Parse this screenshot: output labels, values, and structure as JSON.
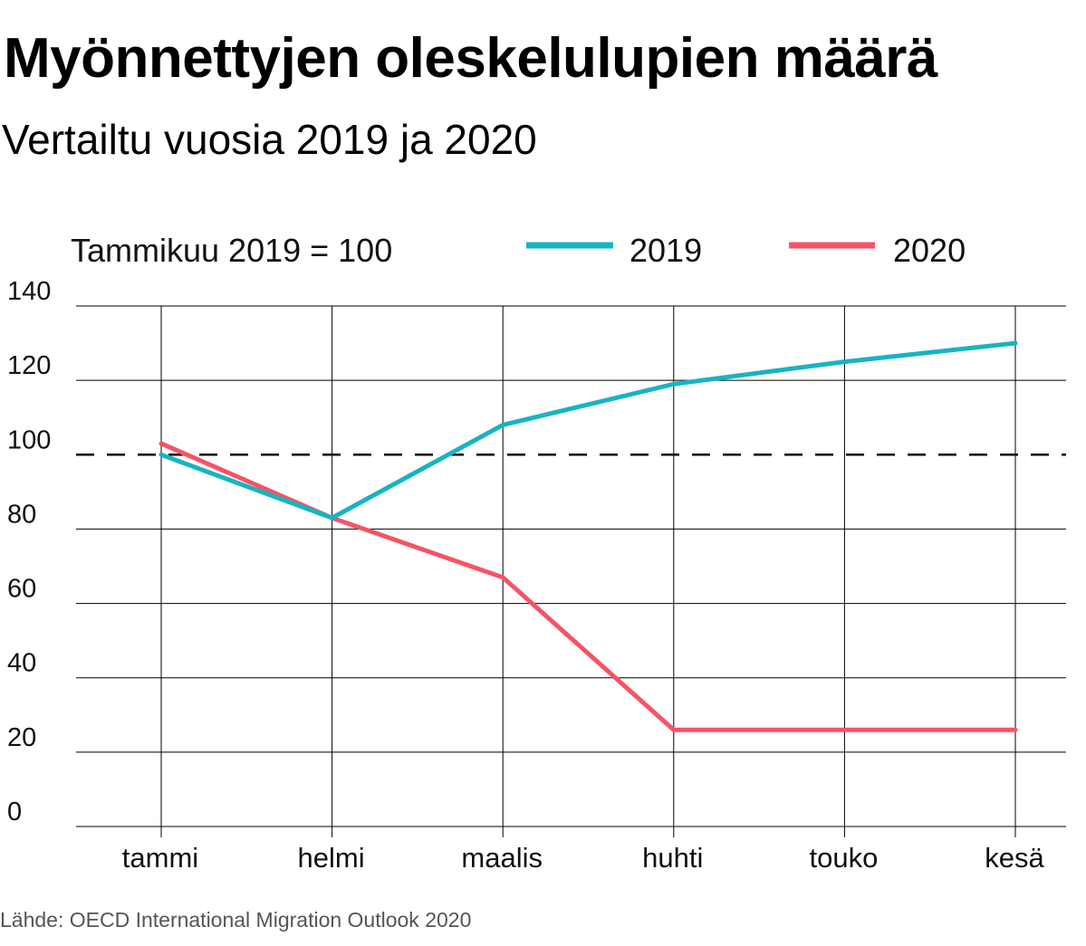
{
  "header": {
    "title": "Myönnettyjen oleskelulupien määrä",
    "subtitle": "Vertailtu vuosia 2019 ja 2020"
  },
  "colors": {
    "series_2019": "#16b4c4",
    "series_2020": "#f55465",
    "grid": "#000000",
    "reference_line": "#000000"
  },
  "chart_data": {
    "type": "line",
    "note": "Tammikuu 2019 = 100",
    "categories": [
      "tammi",
      "helmi",
      "maalis",
      "huhti",
      "touko",
      "kesä"
    ],
    "series": [
      {
        "name": "2019",
        "values": [
          100,
          83,
          108,
          119,
          125,
          130
        ]
      },
      {
        "name": "2020",
        "values": [
          103,
          83,
          67,
          26,
          26,
          26
        ]
      }
    ],
    "reference_value": 100,
    "yticks": [
      0,
      20,
      40,
      60,
      80,
      100,
      120,
      140
    ],
    "ylim": [
      0,
      140
    ],
    "grid": true,
    "legend_position": "top"
  },
  "source": "Lähde: OECD International Migration Outlook 2020"
}
